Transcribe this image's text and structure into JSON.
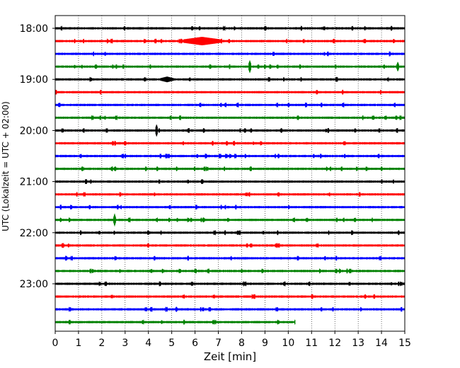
{
  "chart_data": {
    "type": "line",
    "title": "",
    "xlabel": "Zeit  [min]",
    "ylabel": "UTC (Lokalzeit = UTC + 02:00)",
    "xlim": [
      0,
      15
    ],
    "x_ticks": [
      0,
      1,
      2,
      3,
      4,
      5,
      6,
      7,
      8,
      9,
      10,
      11,
      12,
      13,
      14,
      15
    ],
    "x_tick_labels": [
      "0",
      "1",
      "2",
      "3",
      "4",
      "5",
      "6",
      "7",
      "8",
      "9",
      "10",
      "11",
      "12",
      "13",
      "14",
      "15"
    ],
    "y_tick_labels": [
      "18:00",
      "19:00",
      "20:00",
      "21:00",
      "22:00",
      "23:00"
    ],
    "grid": "vertical dotted",
    "trace_colors": [
      "#000000",
      "#ff0000",
      "#0000ff",
      "#008000"
    ],
    "traces": [
      {
        "start": "18:00",
        "end_min": 15
      },
      {
        "start": "18:15",
        "end_min": 15
      },
      {
        "start": "18:30",
        "end_min": 15
      },
      {
        "start": "18:45",
        "end_min": 15
      },
      {
        "start": "19:00",
        "end_min": 15
      },
      {
        "start": "19:15",
        "end_min": 15
      },
      {
        "start": "19:30",
        "end_min": 15
      },
      {
        "start": "19:45",
        "end_min": 15
      },
      {
        "start": "20:00",
        "end_min": 15
      },
      {
        "start": "20:15",
        "end_min": 15
      },
      {
        "start": "20:30",
        "end_min": 15
      },
      {
        "start": "20:45",
        "end_min": 15
      },
      {
        "start": "21:00",
        "end_min": 15
      },
      {
        "start": "21:15",
        "end_min": 15
      },
      {
        "start": "21:30",
        "end_min": 15
      },
      {
        "start": "21:45",
        "end_min": 15
      },
      {
        "start": "22:00",
        "end_min": 15
      },
      {
        "start": "22:15",
        "end_min": 15
      },
      {
        "start": "22:30",
        "end_min": 15
      },
      {
        "start": "22:45",
        "end_min": 15
      },
      {
        "start": "23:00",
        "end_min": 15
      },
      {
        "start": "23:15",
        "end_min": 15
      },
      {
        "start": "23:30",
        "end_min": 15
      },
      {
        "start": "23:45",
        "end_min": 10.3
      }
    ],
    "events": [
      {
        "trace": 1,
        "min": 6.3,
        "amplitude": 6,
        "width_min": 0.8
      },
      {
        "trace": 3,
        "min": 8.35,
        "amplitude": 9,
        "width_min": 0.06
      },
      {
        "trace": 3,
        "min": 14.7,
        "amplitude": 7,
        "width_min": 0.05
      },
      {
        "trace": 4,
        "min": 4.8,
        "amplitude": 4,
        "width_min": 0.3
      },
      {
        "trace": 8,
        "min": 4.35,
        "amplitude": 9,
        "width_min": 0.05
      },
      {
        "trace": 15,
        "min": 2.55,
        "amplitude": 9,
        "width_min": 0.05
      },
      {
        "trace": 22,
        "min": 5.2,
        "amplitude": 4,
        "width_min": 0.05
      }
    ]
  }
}
